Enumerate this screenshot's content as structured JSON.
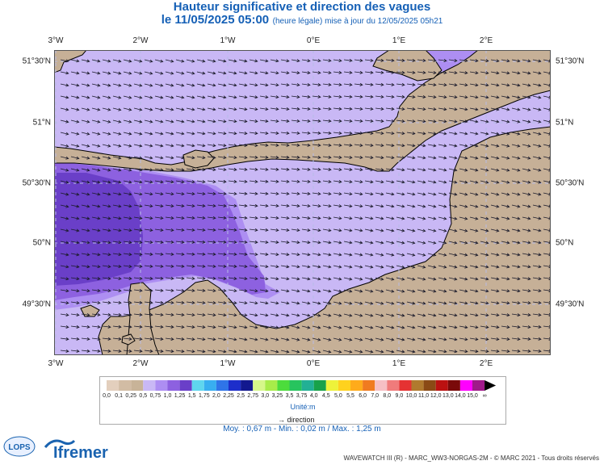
{
  "header": {
    "title": "Hauteur significative et direction des vagues",
    "date": "le 11/05/2025 05:00",
    "update": "(heure légale) mise à jour du 12/05/2025 05h21"
  },
  "axes": {
    "longitude_labels": [
      "3°W",
      "2°W",
      "1°W",
      "0°E",
      "1°E",
      "2°E"
    ],
    "latitude_labels": [
      "51°30'N",
      "51°N",
      "50°30'N",
      "50°N",
      "49°30'N"
    ]
  },
  "legend": {
    "values": [
      "0,0",
      "0,1",
      "0,25",
      "0,5",
      "0,75",
      "1,0",
      "1,25",
      "1,5",
      "1,75",
      "2,0",
      "2,25",
      "2,5",
      "2,75",
      "3,0",
      "3,25",
      "3,5",
      "3,75",
      "4,0",
      "4,5",
      "5,0",
      "5,5",
      "6,0",
      "7,0",
      "8,0",
      "9,0",
      "10,0",
      "11,0",
      "12,0",
      "13,0",
      "14,0",
      "15,0",
      "∞"
    ],
    "colors": [
      "#e3cfbd",
      "#d2bca4",
      "#c8b398",
      "#c9b8f5",
      "#ad8ef2",
      "#8d61e0",
      "#6a3fc8",
      "#5fd6ee",
      "#38aef0",
      "#2f74e8",
      "#1d2ecb",
      "#12188f",
      "#d6f78a",
      "#a8ec4a",
      "#4cdc3c",
      "#27c45e",
      "#22b095",
      "#18a24a",
      "#eef23a",
      "#ffd21e",
      "#ffab1b",
      "#f07b20",
      "#f6bfc4",
      "#f07b7b",
      "#e53232",
      "#b07a2e",
      "#8a4a15",
      "#bb1111",
      "#7a0a0a",
      "#ff00ff",
      "#a01a8a"
    ],
    "unit": "Unité:m",
    "direction_label": "direction"
  },
  "stats": "Moy. : 0,67 m   -   Min. : 0,02 m / Max. : 1,25 m",
  "footer": "WAVEWATCH III (R) - MARC_WW3-NORGAS-2M - © MARC 2021 - Tous droits réservés",
  "logos": {
    "lops": "LOPS",
    "ifremer": "Ifremer"
  },
  "map": {
    "colors": {
      "land": "#c6b097",
      "sea_low": "#c9b8f5",
      "sea_mid": "#ad8ef2",
      "sea_high": "#8d61e0",
      "sea_max": "#6a3fc8",
      "grid": "#b8bbe6"
    },
    "wave_direction": "from west-northwest toward east-southeast"
  }
}
